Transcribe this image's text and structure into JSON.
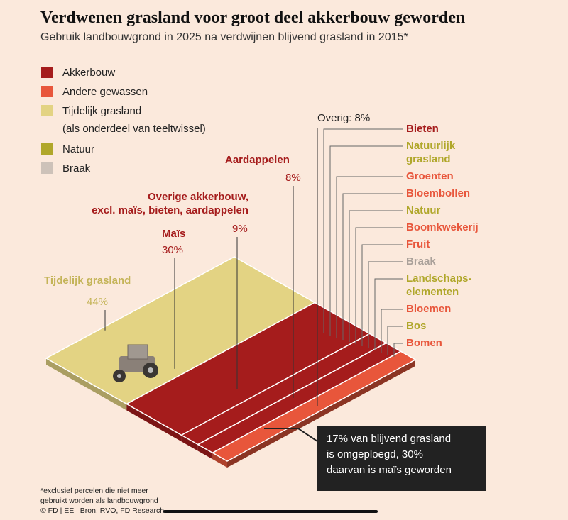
{
  "chart_data": {
    "type": "treemap",
    "title": "Verdwenen grasland voor groot deel akkerbouw geworden",
    "subtitle": "Gebruik landbouwgrond in 2025 na verdwijnen blijvend grasland in 2015*",
    "legend": [
      {
        "name": "Akkerbouw",
        "color": "#a51c1c"
      },
      {
        "name": "Andere gewassen",
        "color": "#e8563b"
      },
      {
        "name": "Tijdelijk grasland",
        "detail": "(als onderdeel van teeltwissel)",
        "color": "#e3d383"
      },
      {
        "name": "Natuur",
        "color": "#b0a72a"
      },
      {
        "name": "Braak",
        "color": "#cdc2b9"
      }
    ],
    "categories": [
      "Tijdelijk grasland",
      "Maïs",
      "Overige akkerbouw,\nexcl. maïs, bieten, aardappelen",
      "Aardappelen",
      null
    ],
    "values": [
      44,
      30,
      9,
      8,
      8
    ],
    "value_labels": [
      "44%",
      "30%",
      "9%",
      "8%",
      "Overig: 8%"
    ],
    "colors": [
      "#e3d383",
      "#a51c1c",
      "#a51c1c",
      "#a51c1c",
      "#e8563b"
    ],
    "label_colors": [
      "#c4b458",
      "#a51c1c",
      "#a51c1c",
      "#a51c1c",
      "#222222"
    ],
    "overig_items": [
      {
        "name": "Bieten",
        "color": "#a51c1c"
      },
      {
        "name": "Natuurlijk\ngrasland",
        "color": "#b0a72a"
      },
      {
        "name": "Groenten",
        "color": "#e8563b"
      },
      {
        "name": "Bloembollen",
        "color": "#e8563b"
      },
      {
        "name": "Natuur",
        "color": "#b0a72a"
      },
      {
        "name": "Boomkwekerij",
        "color": "#e8563b"
      },
      {
        "name": "Fruit",
        "color": "#e8563b"
      },
      {
        "name": "Braak",
        "color": "#aaa19a"
      },
      {
        "name": "Landschaps-\nelementen",
        "color": "#b0a72a"
      },
      {
        "name": "Bloemen",
        "color": "#e8563b"
      },
      {
        "name": "Bos",
        "color": "#b0a72a"
      },
      {
        "name": "Bomen",
        "color": "#e8563b"
      }
    ],
    "annotation": "17% van blijvend grasland\nis omgeploegd, 30%\ndaarvan is maïs geworden",
    "footnote": "*exclusief percelen die niet meer\ngebruikt worden als landbouwgrond",
    "source": "© FD | EE | Bron: RVO, FD Research"
  }
}
